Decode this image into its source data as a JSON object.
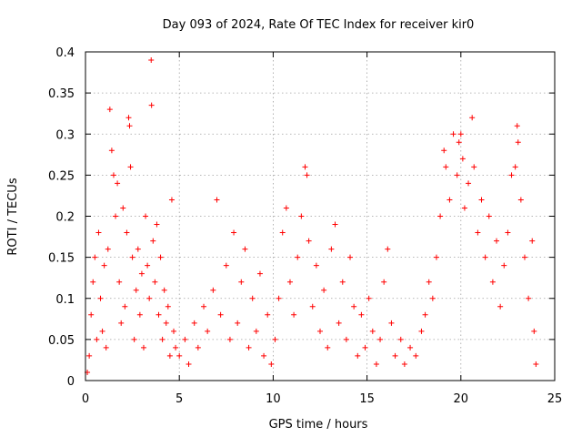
{
  "chart_data": {
    "type": "scatter",
    "title": "Day 093 of 2024, Rate Of TEC Index for receiver kir0",
    "xlabel": "GPS time / hours",
    "ylabel": "ROTI / TECUs",
    "xlim": [
      0,
      25
    ],
    "ylim": [
      0,
      0.4
    ],
    "grid": true,
    "x_ticks": [
      0,
      5,
      10,
      15,
      20,
      25
    ],
    "x_tick_labels": [
      "0",
      "5",
      "10",
      "15",
      "20",
      "25"
    ],
    "y_ticks": [
      0,
      0.05,
      0.1,
      0.15,
      0.2,
      0.25,
      0.3,
      0.35,
      0.4
    ],
    "y_tick_labels": [
      "0",
      "0.05",
      "0.1",
      "0.15",
      "0.2",
      "0.25",
      "0.3",
      "0.35",
      "0.4"
    ],
    "marker": "+",
    "marker_color": "#ff0000",
    "series": [
      {
        "name": "kir0",
        "points": [
          [
            0.1,
            0.01
          ],
          [
            0.2,
            0.03
          ],
          [
            0.3,
            0.08
          ],
          [
            0.4,
            0.12
          ],
          [
            0.5,
            0.15
          ],
          [
            0.6,
            0.05
          ],
          [
            0.7,
            0.18
          ],
          [
            0.8,
            0.1
          ],
          [
            0.9,
            0.06
          ],
          [
            1.0,
            0.14
          ],
          [
            1.1,
            0.04
          ],
          [
            1.2,
            0.16
          ],
          [
            1.3,
            0.33
          ],
          [
            1.4,
            0.28
          ],
          [
            1.5,
            0.25
          ],
          [
            1.6,
            0.2
          ],
          [
            1.7,
            0.24
          ],
          [
            1.8,
            0.12
          ],
          [
            1.9,
            0.07
          ],
          [
            2.0,
            0.21
          ],
          [
            2.1,
            0.09
          ],
          [
            2.2,
            0.18
          ],
          [
            2.3,
            0.32
          ],
          [
            2.35,
            0.31
          ],
          [
            2.4,
            0.26
          ],
          [
            2.5,
            0.15
          ],
          [
            2.6,
            0.05
          ],
          [
            2.7,
            0.11
          ],
          [
            2.8,
            0.16
          ],
          [
            2.9,
            0.08
          ],
          [
            3.0,
            0.13
          ],
          [
            3.1,
            0.04
          ],
          [
            3.2,
            0.2
          ],
          [
            3.3,
            0.14
          ],
          [
            3.4,
            0.1
          ],
          [
            3.5,
            0.39
          ],
          [
            3.52,
            0.335
          ],
          [
            3.6,
            0.17
          ],
          [
            3.7,
            0.12
          ],
          [
            3.8,
            0.19
          ],
          [
            3.9,
            0.08
          ],
          [
            4.0,
            0.15
          ],
          [
            4.1,
            0.05
          ],
          [
            4.2,
            0.11
          ],
          [
            4.3,
            0.07
          ],
          [
            4.4,
            0.09
          ],
          [
            4.5,
            0.03
          ],
          [
            4.6,
            0.22
          ],
          [
            4.7,
            0.06
          ],
          [
            4.8,
            0.04
          ],
          [
            5.0,
            0.03
          ],
          [
            5.3,
            0.05
          ],
          [
            5.5,
            0.02
          ],
          [
            5.8,
            0.07
          ],
          [
            6.0,
            0.04
          ],
          [
            6.3,
            0.09
          ],
          [
            6.5,
            0.06
          ],
          [
            6.8,
            0.11
          ],
          [
            7.0,
            0.22
          ],
          [
            7.2,
            0.08
          ],
          [
            7.5,
            0.14
          ],
          [
            7.7,
            0.05
          ],
          [
            7.9,
            0.18
          ],
          [
            8.1,
            0.07
          ],
          [
            8.3,
            0.12
          ],
          [
            8.5,
            0.16
          ],
          [
            8.7,
            0.04
          ],
          [
            8.9,
            0.1
          ],
          [
            9.1,
            0.06
          ],
          [
            9.3,
            0.13
          ],
          [
            9.5,
            0.03
          ],
          [
            9.7,
            0.08
          ],
          [
            9.9,
            0.02
          ],
          [
            10.1,
            0.05
          ],
          [
            10.3,
            0.1
          ],
          [
            10.5,
            0.18
          ],
          [
            10.7,
            0.21
          ],
          [
            10.9,
            0.12
          ],
          [
            11.1,
            0.08
          ],
          [
            11.3,
            0.15
          ],
          [
            11.5,
            0.2
          ],
          [
            11.7,
            0.26
          ],
          [
            11.8,
            0.25
          ],
          [
            11.9,
            0.17
          ],
          [
            12.1,
            0.09
          ],
          [
            12.3,
            0.14
          ],
          [
            12.5,
            0.06
          ],
          [
            12.7,
            0.11
          ],
          [
            12.9,
            0.04
          ],
          [
            13.1,
            0.16
          ],
          [
            13.3,
            0.19
          ],
          [
            13.5,
            0.07
          ],
          [
            13.7,
            0.12
          ],
          [
            13.9,
            0.05
          ],
          [
            14.1,
            0.15
          ],
          [
            14.3,
            0.09
          ],
          [
            14.5,
            0.03
          ],
          [
            14.7,
            0.08
          ],
          [
            14.9,
            0.04
          ],
          [
            15.1,
            0.1
          ],
          [
            15.3,
            0.06
          ],
          [
            15.5,
            0.02
          ],
          [
            15.7,
            0.05
          ],
          [
            15.9,
            0.12
          ],
          [
            16.1,
            0.16
          ],
          [
            16.3,
            0.07
          ],
          [
            16.5,
            0.03
          ],
          [
            16.8,
            0.05
          ],
          [
            17.0,
            0.02
          ],
          [
            17.3,
            0.04
          ],
          [
            17.6,
            0.03
          ],
          [
            17.9,
            0.06
          ],
          [
            18.1,
            0.08
          ],
          [
            18.3,
            0.12
          ],
          [
            18.5,
            0.1
          ],
          [
            18.7,
            0.15
          ],
          [
            18.9,
            0.2
          ],
          [
            19.1,
            0.28
          ],
          [
            19.2,
            0.26
          ],
          [
            19.4,
            0.22
          ],
          [
            19.6,
            0.3
          ],
          [
            19.8,
            0.25
          ],
          [
            19.9,
            0.29
          ],
          [
            20.0,
            0.3
          ],
          [
            20.1,
            0.27
          ],
          [
            20.2,
            0.21
          ],
          [
            20.4,
            0.24
          ],
          [
            20.6,
            0.32
          ],
          [
            20.7,
            0.26
          ],
          [
            20.9,
            0.18
          ],
          [
            21.1,
            0.22
          ],
          [
            21.3,
            0.15
          ],
          [
            21.5,
            0.2
          ],
          [
            21.7,
            0.12
          ],
          [
            21.9,
            0.17
          ],
          [
            22.1,
            0.09
          ],
          [
            22.3,
            0.14
          ],
          [
            22.5,
            0.18
          ],
          [
            22.7,
            0.25
          ],
          [
            22.9,
            0.26
          ],
          [
            23.0,
            0.31
          ],
          [
            23.05,
            0.29
          ],
          [
            23.2,
            0.22
          ],
          [
            23.4,
            0.15
          ],
          [
            23.6,
            0.1
          ],
          [
            23.8,
            0.17
          ],
          [
            23.9,
            0.06
          ],
          [
            24.0,
            0.02
          ]
        ]
      }
    ]
  }
}
